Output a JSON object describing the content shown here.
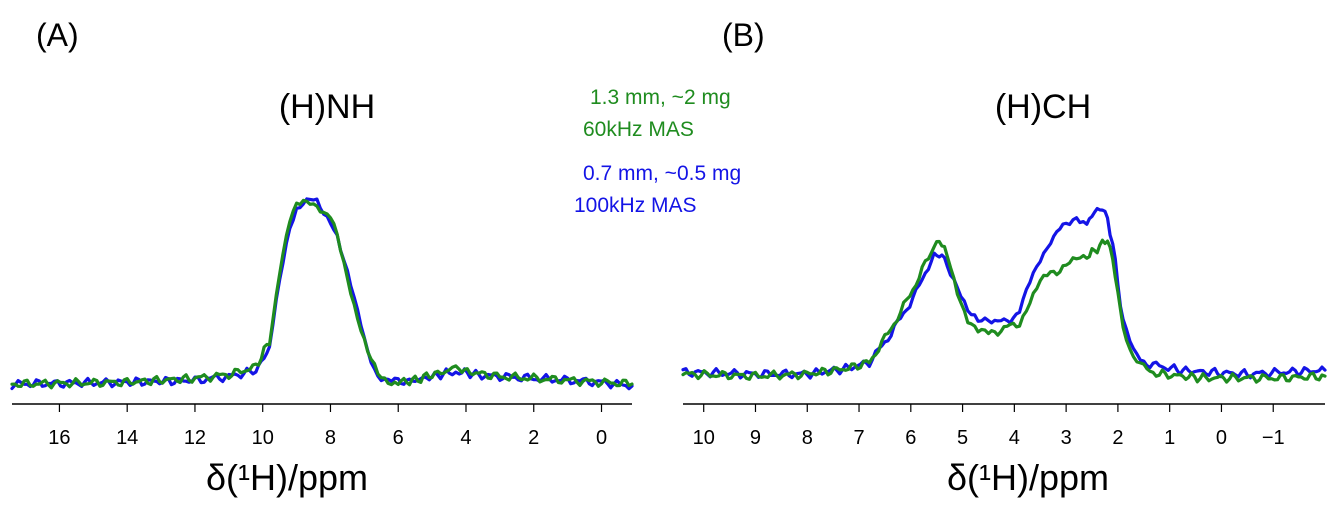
{
  "legend": [
    {
      "series": "1.3mm",
      "lines": [
        "1.3 mm, ~2 mg",
        "60kHz MAS"
      ],
      "color": "#1f8c1f"
    },
    {
      "series": "0.7mm",
      "lines": [
        "0.7 mm, ~0.5 mg",
        "100kHz MAS"
      ],
      "color": "#1414e6"
    }
  ],
  "chart_data": [
    {
      "panel_label": "(A)",
      "type": "line",
      "title": "(H)NH",
      "xlabel": "δ(¹H)/ppm",
      "xlim": [
        17.4,
        -0.9
      ],
      "x_reversed": true,
      "ylim": [
        0,
        1.0
      ],
      "xticks": [
        16,
        14,
        12,
        10,
        8,
        6,
        4,
        2,
        0
      ],
      "xtick_labels": [
        "16",
        "14",
        "12",
        "10",
        "8",
        "6",
        "4",
        "2",
        "0"
      ],
      "series": [
        {
          "name": "0.7 mm, ~0.5 mg 100kHz MAS",
          "color": "#1414e6",
          "x": [
            17.4,
            14,
            12,
            11,
            10.2,
            9.8,
            9.5,
            9.2,
            9.0,
            8.8,
            8.6,
            8.4,
            8.2,
            8.0,
            7.8,
            7.5,
            7.2,
            6.9,
            6.6,
            6.3,
            6.0,
            5.5,
            5.0,
            4.5,
            4.2,
            3.8,
            3.0,
            2.0,
            1.0,
            0,
            -0.9
          ],
          "y": [
            0.01,
            0.02,
            0.03,
            0.05,
            0.08,
            0.2,
            0.55,
            0.84,
            0.94,
            0.97,
            0.98,
            0.96,
            0.9,
            0.87,
            0.8,
            0.6,
            0.38,
            0.18,
            0.06,
            0.03,
            0.02,
            0.03,
            0.05,
            0.07,
            0.08,
            0.06,
            0.05,
            0.04,
            0.03,
            0.02,
            0.0
          ]
        },
        {
          "name": "1.3 mm, ~2 mg 60kHz MAS",
          "color": "#1f8c1f",
          "x": [
            17.4,
            14,
            12,
            11,
            10.2,
            9.8,
            9.5,
            9.2,
            9.0,
            8.8,
            8.6,
            8.4,
            8.2,
            8.0,
            7.8,
            7.5,
            7.2,
            6.9,
            6.6,
            6.3,
            6.0,
            5.5,
            5.0,
            4.5,
            4.2,
            3.8,
            3.0,
            2.0,
            1.0,
            0,
            -0.9
          ],
          "y": [
            0.01,
            0.02,
            0.04,
            0.06,
            0.1,
            0.24,
            0.6,
            0.86,
            0.95,
            0.98,
            0.98,
            0.95,
            0.9,
            0.88,
            0.79,
            0.58,
            0.36,
            0.17,
            0.06,
            0.03,
            0.02,
            0.03,
            0.06,
            0.08,
            0.09,
            0.07,
            0.05,
            0.04,
            0.03,
            0.02,
            0.01
          ]
        }
      ]
    },
    {
      "panel_label": "(B)",
      "type": "line",
      "title": "(H)CH",
      "xlabel": "δ(¹H)/ppm",
      "xlim": [
        10.4,
        -2.0
      ],
      "x_reversed": true,
      "ylim": [
        0,
        1.0
      ],
      "xticks": [
        10,
        9,
        8,
        7,
        6,
        5,
        4,
        3,
        2,
        1,
        0,
        -1
      ],
      "xtick_labels": [
        "10",
        "9",
        "8",
        "7",
        "6",
        "5",
        "4",
        "3",
        "2",
        "1",
        "0",
        "−1"
      ],
      "series": [
        {
          "name": "0.7 mm, ~0.5 mg 100kHz MAS",
          "color": "#1414e6",
          "x": [
            10.4,
            9.0,
            8.0,
            7.2,
            6.8,
            6.5,
            6.2,
            5.9,
            5.6,
            5.45,
            5.3,
            5.1,
            4.9,
            4.7,
            4.5,
            4.2,
            3.9,
            3.7,
            3.5,
            3.3,
            3.0,
            2.8,
            2.6,
            2.45,
            2.3,
            2.2,
            2.1,
            2.0,
            1.9,
            1.7,
            1.5,
            1.2,
            0.8,
            0.3,
            -0.5,
            -1.2,
            -2.0
          ],
          "y": [
            0.05,
            0.04,
            0.04,
            0.07,
            0.1,
            0.2,
            0.32,
            0.45,
            0.62,
            0.65,
            0.6,
            0.48,
            0.35,
            0.3,
            0.32,
            0.3,
            0.35,
            0.5,
            0.62,
            0.72,
            0.8,
            0.84,
            0.8,
            0.86,
            0.88,
            0.82,
            0.7,
            0.5,
            0.3,
            0.15,
            0.1,
            0.08,
            0.06,
            0.05,
            0.04,
            0.05,
            0.06
          ]
        },
        {
          "name": "1.3 mm, ~2 mg 60kHz MAS",
          "color": "#1f8c1f",
          "x": [
            10.4,
            9.0,
            8.0,
            7.2,
            6.8,
            6.5,
            6.2,
            5.9,
            5.6,
            5.45,
            5.3,
            5.1,
            4.9,
            4.7,
            4.5,
            4.2,
            3.9,
            3.7,
            3.5,
            3.3,
            3.0,
            2.8,
            2.6,
            2.45,
            2.3,
            2.2,
            2.1,
            2.0,
            1.9,
            1.7,
            1.5,
            1.2,
            0.8,
            0.3,
            -0.5,
            -1.2,
            -2.0
          ],
          "y": [
            0.04,
            0.03,
            0.04,
            0.07,
            0.1,
            0.22,
            0.35,
            0.5,
            0.66,
            0.72,
            0.64,
            0.46,
            0.32,
            0.26,
            0.24,
            0.27,
            0.3,
            0.4,
            0.5,
            0.55,
            0.58,
            0.62,
            0.64,
            0.66,
            0.7,
            0.72,
            0.62,
            0.45,
            0.28,
            0.12,
            0.07,
            0.04,
            0.03,
            0.02,
            0.02,
            0.02,
            0.03
          ]
        }
      ]
    }
  ]
}
